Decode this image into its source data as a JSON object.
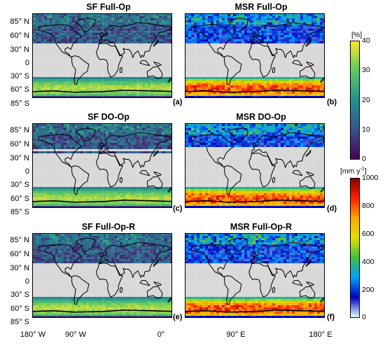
{
  "panels": [
    {
      "id": "a",
      "title": "SF Full-Op",
      "label": "(a)",
      "type": "sf"
    },
    {
      "id": "b",
      "title": "MSR Full-Op",
      "label": "(b)",
      "type": "msr"
    },
    {
      "id": "c",
      "title": "SF DO-Op",
      "label": "(c)",
      "type": "sf"
    },
    {
      "id": "d",
      "title": "MSR DO-Op",
      "label": "(d)",
      "type": "msr"
    },
    {
      "id": "e",
      "title": "SF Full-Op-R",
      "label": "(e)",
      "type": "sf"
    },
    {
      "id": "f",
      "title": "MSR Full-Op-R",
      "label": "(f)",
      "type": "msr"
    }
  ],
  "lat_labels": [
    "85° N",
    "60° N",
    "30° N",
    "0",
    "30° S",
    "60° S",
    "85° S"
  ],
  "lon_labels": [
    "180° W",
    "90° W",
    "0°",
    "90° E",
    "180° E"
  ],
  "colorbar_sf": {
    "unit": "[%]",
    "ticks": [
      "40",
      "30",
      "20",
      "10",
      "0"
    ],
    "colors": [
      "#fde725",
      "#5ec962",
      "#21918c",
      "#3b528b",
      "#440154"
    ]
  },
  "colorbar_msr": {
    "unit": "[mm y",
    "unit_sup": "-1",
    "unit_end": "]",
    "ticks": [
      "1000",
      "800",
      "600",
      "400",
      "200",
      "0"
    ],
    "colors": [
      "#8b0000",
      "#ff2000",
      "#ffa500",
      "#e0e000",
      "#40c040",
      "#00a0ff",
      "#0000c0",
      "#e0ffff"
    ]
  }
}
